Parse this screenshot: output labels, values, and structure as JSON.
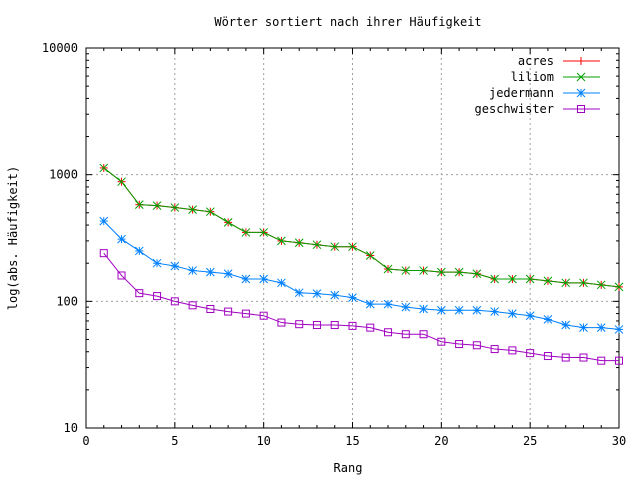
{
  "chart_data": {
    "type": "line",
    "title": "Wörter sortiert nach ihrer Häufigkeit",
    "xlabel": "Rang",
    "ylabel": "log(abs. Häufigkeit)",
    "xlim": [
      0,
      30
    ],
    "ylim": [
      10,
      10000
    ],
    "yscale": "log",
    "grid": true,
    "legend_position": "top-right",
    "xticks": [
      0,
      5,
      10,
      15,
      20,
      25,
      30
    ],
    "yticks": [
      10,
      100,
      1000,
      10000
    ],
    "x": [
      1,
      2,
      3,
      4,
      5,
      6,
      7,
      8,
      9,
      10,
      11,
      12,
      13,
      14,
      15,
      16,
      17,
      18,
      19,
      20,
      21,
      22,
      23,
      24,
      25,
      26,
      27,
      28,
      29,
      30
    ],
    "series": [
      {
        "name": "acres",
        "color": "#ff0000",
        "marker": "plus",
        "values": [
          1130,
          880,
          580,
          570,
          550,
          530,
          510,
          420,
          350,
          350,
          300,
          290,
          280,
          270,
          270,
          230,
          180,
          175,
          175,
          170,
          170,
          165,
          150,
          150,
          150,
          145,
          140,
          140,
          135,
          130
        ]
      },
      {
        "name": "liliom",
        "color": "#00a000",
        "marker": "cross",
        "values": [
          1130,
          880,
          580,
          570,
          550,
          530,
          510,
          420,
          350,
          350,
          300,
          290,
          280,
          270,
          270,
          230,
          180,
          175,
          175,
          170,
          170,
          165,
          150,
          150,
          150,
          145,
          140,
          140,
          135,
          130
        ]
      },
      {
        "name": "jedermann",
        "color": "#0080ff",
        "marker": "asterisk",
        "values": [
          430,
          310,
          250,
          200,
          190,
          175,
          170,
          165,
          150,
          150,
          140,
          117,
          115,
          112,
          107,
          95,
          95,
          90,
          87,
          85,
          85,
          85,
          83,
          80,
          77,
          72,
          65,
          62,
          62,
          60
        ]
      },
      {
        "name": "geschwister",
        "color": "#a000c0",
        "marker": "square",
        "values": [
          240,
          160,
          116,
          110,
          100,
          93,
          87,
          83,
          80,
          77,
          68,
          66,
          65,
          65,
          64,
          62,
          57,
          55,
          55,
          48,
          46,
          45,
          42,
          41,
          39,
          37,
          36,
          36,
          34,
          34
        ]
      }
    ]
  }
}
